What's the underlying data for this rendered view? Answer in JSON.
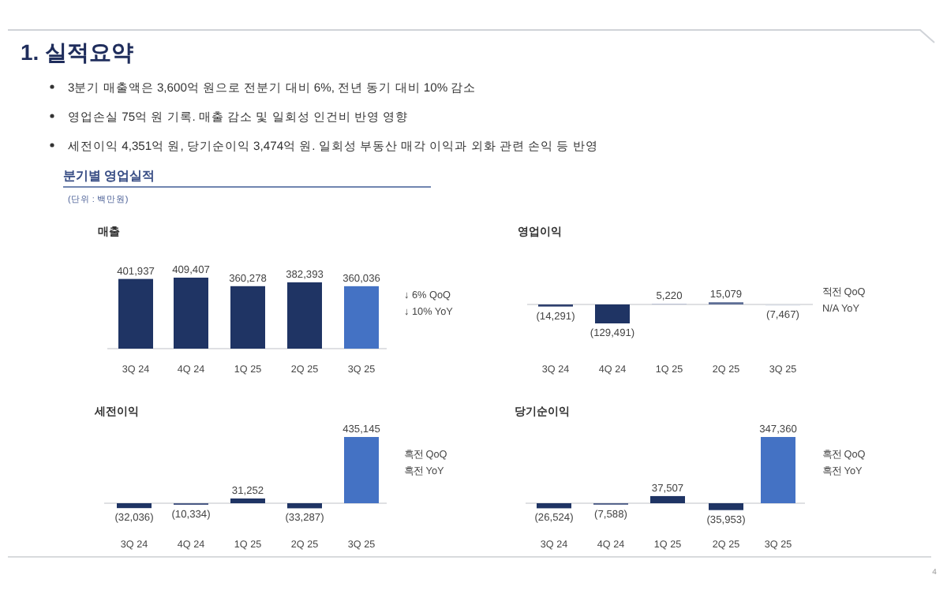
{
  "chart_data": [
    {
      "type": "other",
      "title": "1. 실적요약",
      "annotations": [
        "3분기 매출액은 3,600억 원으로 전분기 대비 6%, 전년 동기 대비 10% 감소",
        "영업손실 75억 원 기록. 매출 감소 및 일회성 인건비 반영 영향",
        "세전이익 4,351억 원, 당기순이익 3,474억 원. 일회성 부동산 매각 이익과 외화 관련 손익 등 반영",
        "분기별 영업실적",
        "(단위 : 백만원)",
        "4"
      ]
    },
    {
      "type": "bar",
      "title": "매출",
      "categories": [
        "3Q 24",
        "4Q 24",
        "1Q 25",
        "2Q 25",
        "3Q 25"
      ],
      "values": [
        401937,
        409407,
        360278,
        382393,
        360036
      ],
      "colors": [
        "#1f3464",
        "#1f3464",
        "#1f3464",
        "#1f3464",
        "#4472c4"
      ],
      "value_labels": [
        "401,937",
        "409,407",
        "360,278",
        "382,393",
        "360,036"
      ],
      "annotations": [
        "↓ 6% QoQ",
        "↓ 10% YoY"
      ]
    },
    {
      "type": "bar",
      "title": "영업이익",
      "categories": [
        "3Q 24",
        "4Q 24",
        "1Q 25",
        "2Q 25",
        "3Q 25"
      ],
      "values": [
        -14291,
        -129491,
        5220,
        15079,
        -7467
      ],
      "colors": [
        "#2e3f6e",
        "#1f3464",
        "#b9c1d3",
        "#5f6f96",
        "#d9dde6"
      ],
      "value_labels": [
        "(14,291)",
        "(129,491)",
        "5,220",
        "15,079",
        "(7,467)"
      ],
      "annotations": [
        "적전 QoQ",
        "N/A YoY"
      ]
    },
    {
      "type": "bar",
      "title": "세전이익",
      "categories": [
        "3Q 24",
        "4Q 24",
        "1Q 25",
        "2Q 25",
        "3Q 25"
      ],
      "values": [
        -32036,
        -10334,
        31252,
        -33287,
        435145
      ],
      "colors": [
        "#1f3464",
        "#4a5a85",
        "#1f3464",
        "#1f3464",
        "#4472c4"
      ],
      "value_labels": [
        "(32,036)",
        "(10,334)",
        "31,252",
        "(33,287)",
        "435,145"
      ],
      "annotations": [
        "흑전 QoQ",
        "흑전 YoY"
      ]
    },
    {
      "type": "bar",
      "title": "당기순이익",
      "categories": [
        "3Q 24",
        "4Q 24",
        "1Q 25",
        "2Q 25",
        "3Q 25"
      ],
      "values": [
        -26524,
        -7588,
        37507,
        -35953,
        347360
      ],
      "colors": [
        "#1f3464",
        "#4a5a85",
        "#1f3464",
        "#1f3464",
        "#4472c4"
      ],
      "value_labels": [
        "(26,524)",
        "(7,588)",
        "37,507",
        "(35,953)",
        "347,360"
      ],
      "annotations": [
        "흑전 QoQ",
        "흑전 YoY"
      ]
    }
  ]
}
